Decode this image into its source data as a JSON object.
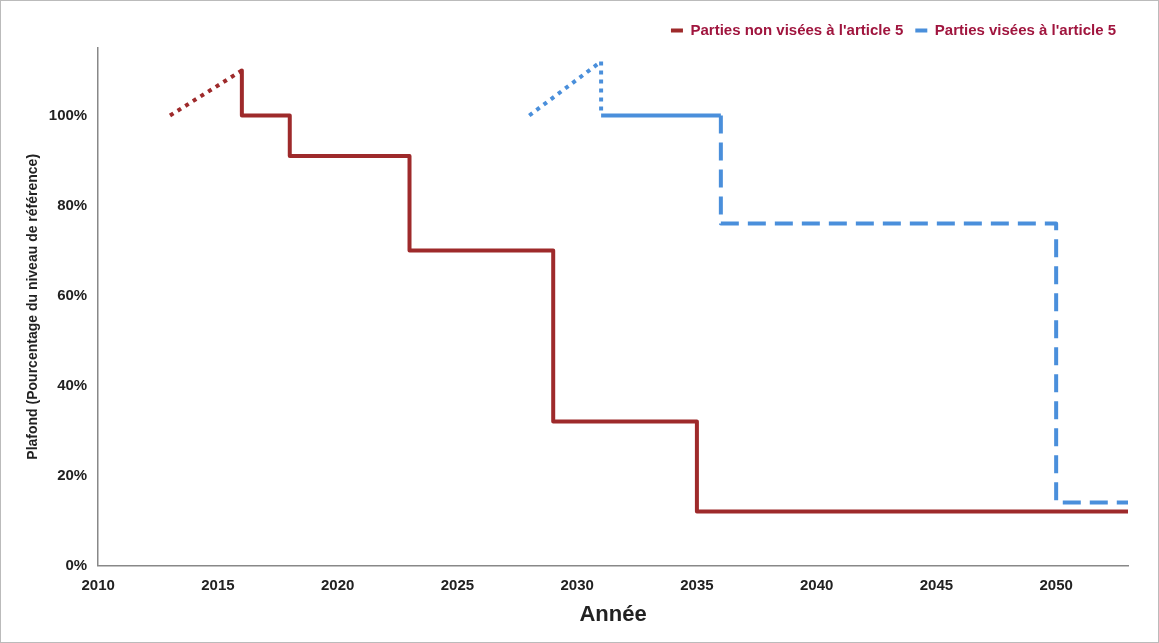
{
  "chart_data": {
    "type": "line",
    "xlabel": "Année",
    "ylabel": "Plafond (Pourcentage du niveau de référence)",
    "xlim": [
      2010,
      2053
    ],
    "xticks": [
      2010,
      2015,
      2020,
      2025,
      2030,
      2035,
      2040,
      2045,
      2050
    ],
    "ylim": [
      0,
      115
    ],
    "yticks": [
      {
        "value": 0,
        "label": "0%"
      },
      {
        "value": 20,
        "label": "20%"
      },
      {
        "value": 40,
        "label": "40%"
      },
      {
        "value": 60,
        "label": "60%"
      },
      {
        "value": 80,
        "label": "80%"
      },
      {
        "value": 100,
        "label": "100%"
      }
    ],
    "grid": false,
    "legend": "top right",
    "marker": "none",
    "series": [
      {
        "color": "#9e2a2b",
        "line_style": "dotted",
        "x": [
          2013,
          2016
        ],
        "values": [
          100,
          110
        ]
      },
      {
        "name": "Parties non visées à l'article 5",
        "color": "#9e2a2b",
        "line_style": "solid",
        "x": [
          2016,
          2016,
          2018,
          2018,
          2023,
          2023,
          2029,
          2029,
          2035,
          2035,
          2053
        ],
        "values": [
          110,
          100,
          100,
          91,
          91,
          70,
          70,
          32,
          32,
          12,
          12
        ]
      },
      {
        "color": "#4a8fdb",
        "line_style": "dotted",
        "x": [
          2028,
          2031,
          2031
        ],
        "values": [
          100,
          112,
          100
        ]
      },
      {
        "color": "#4a8fdb",
        "line_style": "solid",
        "x": [
          2031,
          2036
        ],
        "values": [
          100,
          100
        ]
      },
      {
        "name": "Parties visées à l'article 5",
        "color": "#4a8fdb",
        "line_style": "dashed",
        "x": [
          2036,
          2036,
          2050,
          2050,
          2053
        ],
        "values": [
          100,
          76,
          76,
          14,
          14
        ]
      }
    ]
  }
}
